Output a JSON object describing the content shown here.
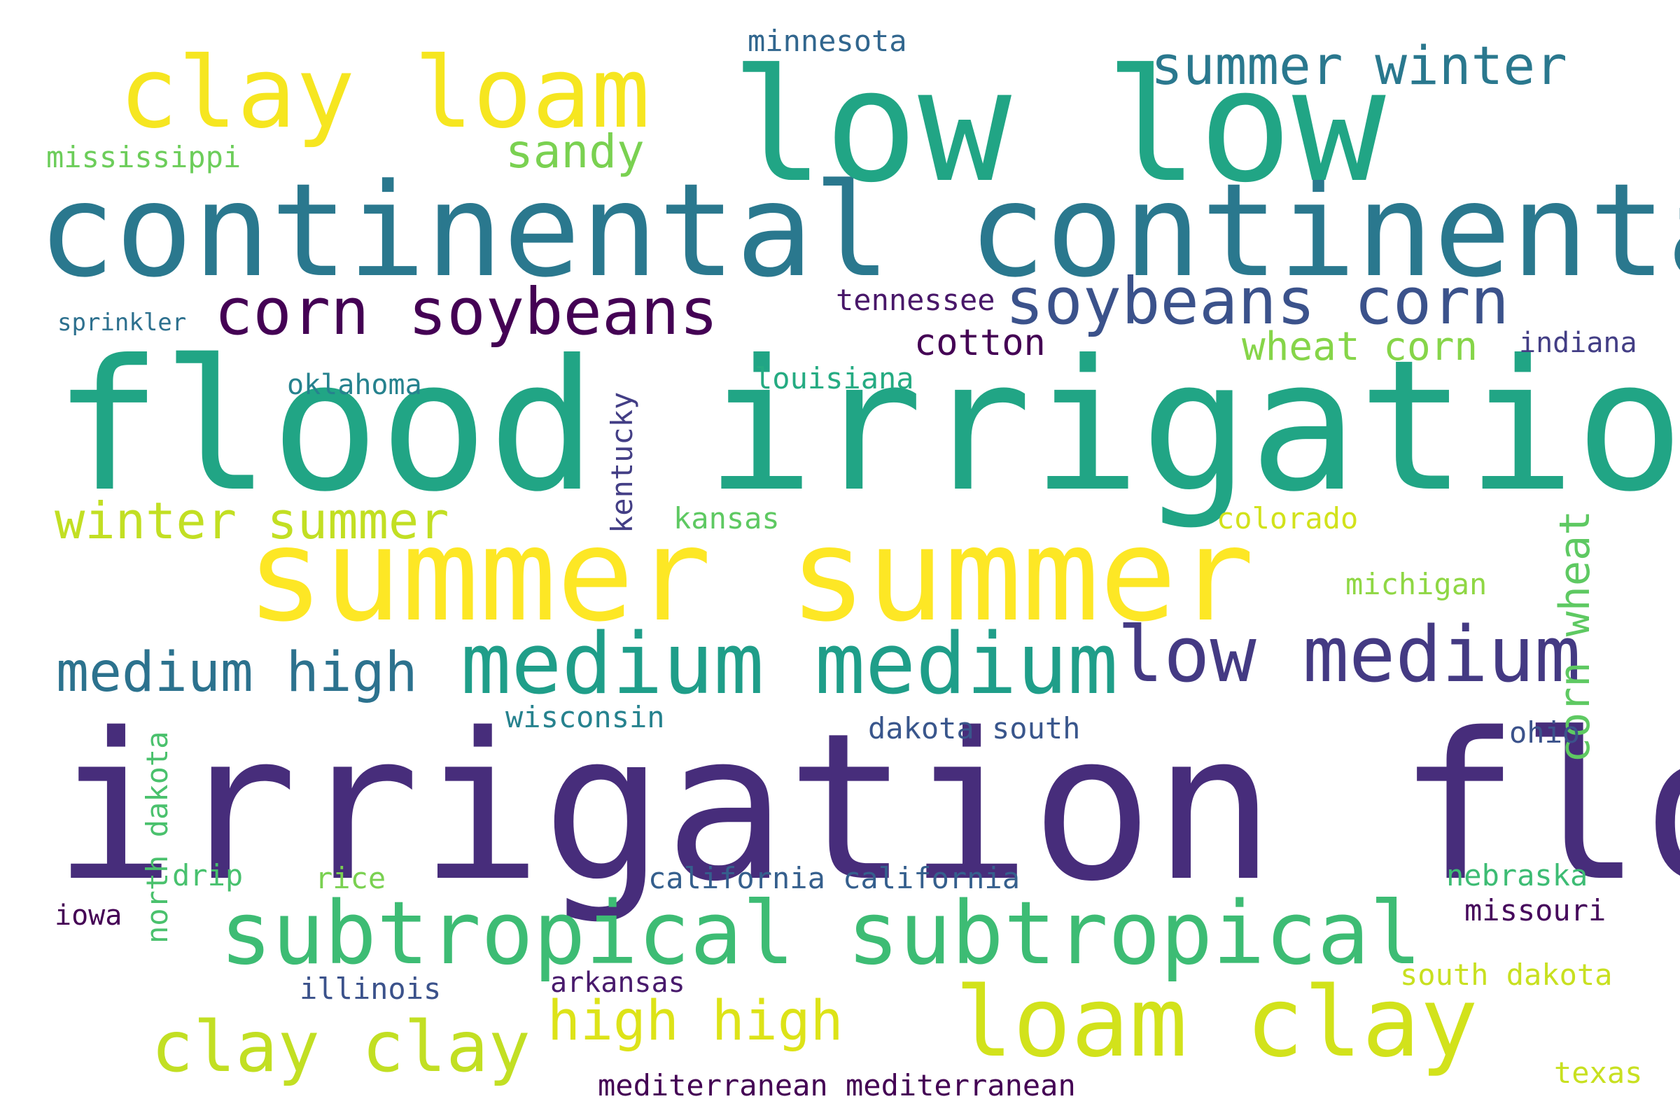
{
  "palette": {
    "dark_purple": "#440154",
    "indigo": "#472d7b",
    "slate_blue": "#3b528b",
    "steel_blue": "#2c728e",
    "teal": "#21918c",
    "sea_green": "#28ae80",
    "green": "#5ec962",
    "lime": "#addc30",
    "yellow": "#fde725"
  },
  "words": [
    {
      "text": "irrigation flood",
      "color": "#472d7b"
    },
    {
      "text": "flood irrigation",
      "color": "#21a585"
    },
    {
      "text": "summer summer",
      "color": "#fde725"
    },
    {
      "text": "continental continental",
      "color": "#2a788e"
    },
    {
      "text": "low low",
      "color": "#21a585"
    },
    {
      "text": "clay loam",
      "color": "#f6e620"
    },
    {
      "text": "subtropical subtropical",
      "color": "#3dbc74"
    },
    {
      "text": "loam clay",
      "color": "#d2e21b"
    },
    {
      "text": "medium medium",
      "color": "#1f9e89"
    },
    {
      "text": "low medium",
      "color": "#443a83"
    },
    {
      "text": "corn soybeans",
      "color": "#440154"
    },
    {
      "text": "soybeans corn",
      "color": "#3b528b"
    },
    {
      "text": "medium high",
      "color": "#2c728e"
    },
    {
      "text": "clay clay",
      "color": "#c2df23"
    },
    {
      "text": "summer winter",
      "color": "#2a788e"
    },
    {
      "text": "winter summer",
      "color": "#c2df23"
    },
    {
      "text": "high high",
      "color": "#dde318"
    },
    {
      "text": "sandy",
      "color": "#7ad151"
    },
    {
      "text": "corn wheat",
      "color": "#5ec962"
    },
    {
      "text": "wheat corn",
      "color": "#86d549"
    },
    {
      "text": "cotton",
      "color": "#440154"
    },
    {
      "text": "minnesota",
      "color": "#31668e"
    },
    {
      "text": "mississippi",
      "color": "#6ccd5a"
    },
    {
      "text": "tennessee",
      "color": "#481769"
    },
    {
      "text": "indiana",
      "color": "#433e85"
    },
    {
      "text": "sprinkler",
      "color": "#2d708e"
    },
    {
      "text": "oklahoma",
      "color": "#26828e"
    },
    {
      "text": "louisiana",
      "color": "#25ab82"
    },
    {
      "text": "kentucky",
      "color": "#433e85"
    },
    {
      "text": "kansas",
      "color": "#5ec962"
    },
    {
      "text": "colorado",
      "color": "#d2e21b"
    },
    {
      "text": "michigan",
      "color": "#8fd744"
    },
    {
      "text": "wisconsin",
      "color": "#26828e"
    },
    {
      "text": "dakota south",
      "color": "#39568c"
    },
    {
      "text": "ohio",
      "color": "#3b528b"
    },
    {
      "text": "north dakota",
      "color": "#4ac16d"
    },
    {
      "text": "drip",
      "color": "#48c16e"
    },
    {
      "text": "rice",
      "color": "#7ad151"
    },
    {
      "text": "california california",
      "color": "#355f8d"
    },
    {
      "text": "nebraska",
      "color": "#3dbc74"
    },
    {
      "text": "iowa",
      "color": "#440154"
    },
    {
      "text": "missouri",
      "color": "#46085c"
    },
    {
      "text": "illinois",
      "color": "#3b528b"
    },
    {
      "text": "arkansas",
      "color": "#481a6c"
    },
    {
      "text": "south dakota",
      "color": "#c8e020"
    },
    {
      "text": "mediterranean mediterranean",
      "color": "#440154"
    },
    {
      "text": "texas",
      "color": "#c8e020"
    }
  ]
}
